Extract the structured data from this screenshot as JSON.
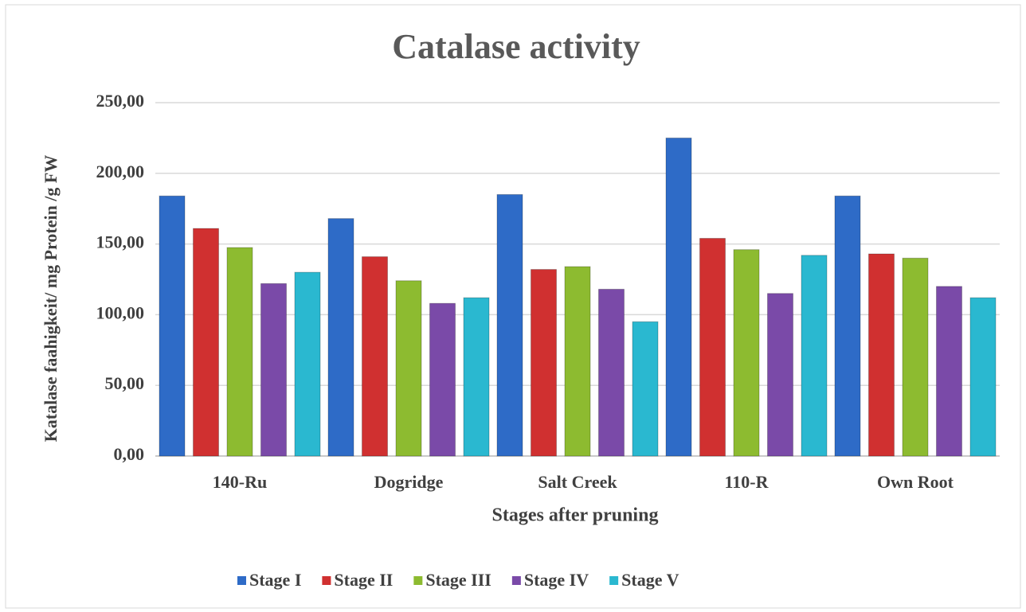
{
  "chart_data": {
    "type": "bar",
    "title": "Catalase activity",
    "x_label": "Stages after pruning",
    "y_label": "Katalase faahigkeit/ mg Protein /g FW",
    "categories": [
      "140-Ru",
      "Dogridge",
      "Salt Creek",
      "110-R",
      "Own Root"
    ],
    "series": [
      {
        "name": "Stage I",
        "color": "#2e6bc7",
        "values": [
          184,
          168,
          185,
          225,
          184
        ]
      },
      {
        "name": "Stage II",
        "color": "#d03030",
        "values": [
          161,
          141,
          132,
          154,
          143
        ]
      },
      {
        "name": "Stage III",
        "color": "#8dbb30",
        "values": [
          147.5,
          124,
          134,
          146,
          140
        ]
      },
      {
        "name": "Stage IV",
        "color": "#7a4aa8",
        "values": [
          122,
          108,
          118,
          115,
          120
        ]
      },
      {
        "name": "Stage V",
        "color": "#2ab8d0",
        "values": [
          130,
          112,
          95,
          142,
          112
        ]
      }
    ],
    "ylim": [
      0,
      250
    ],
    "yticks": [
      {
        "value": 0,
        "label": "0,00"
      },
      {
        "value": 50,
        "label": "50,00"
      },
      {
        "value": 100,
        "label": "100,00"
      },
      {
        "value": 150,
        "label": "150,00"
      },
      {
        "value": 200,
        "label": "200,00"
      },
      {
        "value": 250,
        "label": "250,00"
      }
    ],
    "grid": true,
    "legend": "bottom"
  }
}
